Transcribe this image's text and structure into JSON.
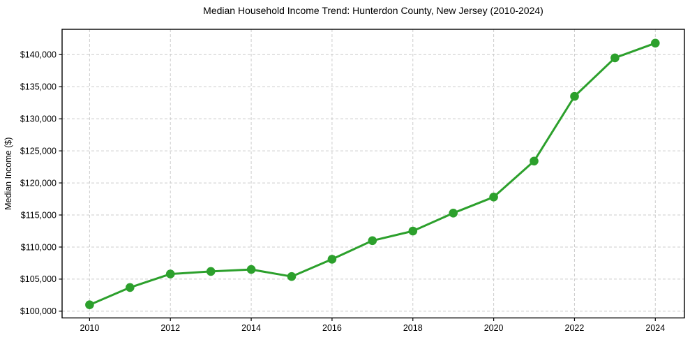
{
  "chart_data": {
    "type": "line",
    "title": "Median Household Income Trend: Hunterdon County, New Jersey (2010-2024)",
    "xlabel": "",
    "ylabel": "Median Income ($)",
    "x": [
      2010,
      2011,
      2012,
      2013,
      2014,
      2015,
      2016,
      2017,
      2018,
      2019,
      2020,
      2021,
      2022,
      2023,
      2024
    ],
    "values": [
      101000,
      103700,
      105800,
      106200,
      106500,
      105400,
      108100,
      111000,
      112500,
      115300,
      117800,
      123400,
      133500,
      139500,
      141800
    ],
    "x_ticks": [
      2010,
      2012,
      2014,
      2016,
      2018,
      2020,
      2022,
      2024
    ],
    "x_tick_labels": [
      "2010",
      "2012",
      "2014",
      "2016",
      "2018",
      "2020",
      "2022",
      "2024"
    ],
    "y_ticks": [
      100000,
      105000,
      110000,
      115000,
      120000,
      125000,
      130000,
      135000,
      140000
    ],
    "y_tick_labels": [
      "$100,000",
      "$105,000",
      "$110,000",
      "$115,000",
      "$120,000",
      "$125,000",
      "$130,000",
      "$135,000",
      "$140,000"
    ],
    "xlim": [
      2009.32,
      2024.72
    ],
    "ylim": [
      98950,
      143950
    ],
    "grid": true,
    "legend_position": "none",
    "line_color": "#2ca02c",
    "marker": "circle",
    "grid_color": "#cccccc",
    "spine_color": "#000000",
    "background_color": "#ffffff"
  }
}
